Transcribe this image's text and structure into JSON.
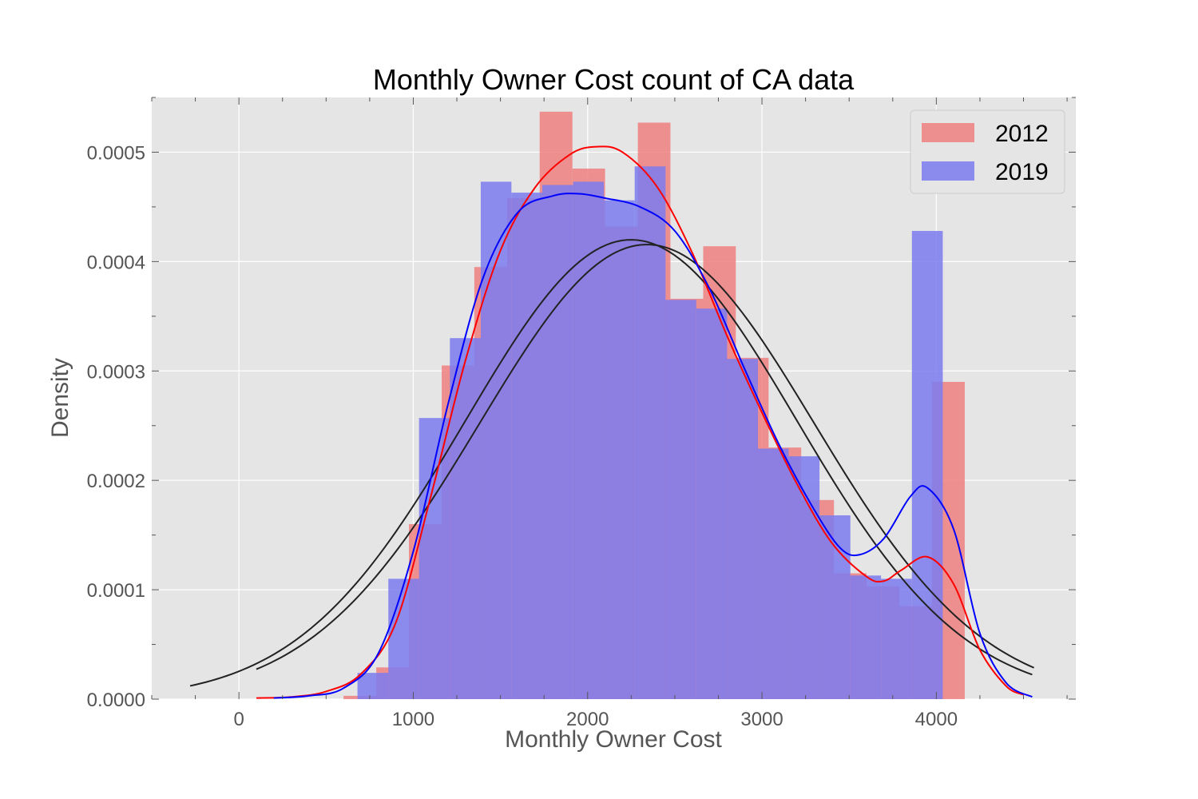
{
  "chart_data": {
    "type": "bar",
    "title": "Monthly Owner Cost count of CA  data",
    "xlabel": "Monthly Owner Cost",
    "ylabel": "Density",
    "xlim": [
      -500,
      4800
    ],
    "ylim": [
      0,
      0.00055
    ],
    "x_ticks": [
      0,
      1000,
      2000,
      3000,
      4000
    ],
    "x_tick_labels": [
      "0",
      "1000",
      "2000",
      "3000",
      "4000"
    ],
    "y_ticks": [
      0,
      0.0001,
      0.0002,
      0.0003,
      0.0004,
      0.0005
    ],
    "y_tick_labels": [
      "0.0000",
      "0.0001",
      "0.0002",
      "0.0003",
      "0.0004",
      "0.0005"
    ],
    "grid": true,
    "legend_position": "top-right",
    "series": [
      {
        "name": "2012",
        "kind": "histogram",
        "color": "#f08080",
        "bins": [
          {
            "x0": 600,
            "x1": 788,
            "value": 3e-06
          },
          {
            "x0": 788,
            "x1": 975,
            "value": 2.9e-05
          },
          {
            "x0": 975,
            "x1": 1163,
            "value": 0.00016
          },
          {
            "x0": 1163,
            "x1": 1350,
            "value": 0.000305
          },
          {
            "x0": 1350,
            "x1": 1538,
            "value": 0.000395
          },
          {
            "x0": 1538,
            "x1": 1725,
            "value": 0.000458
          },
          {
            "x0": 1725,
            "x1": 1913,
            "value": 0.000537
          },
          {
            "x0": 1913,
            "x1": 2100,
            "value": 0.000485
          },
          {
            "x0": 2100,
            "x1": 2288,
            "value": 0.000432
          },
          {
            "x0": 2288,
            "x1": 2475,
            "value": 0.000527
          },
          {
            "x0": 2475,
            "x1": 2663,
            "value": 0.000366
          },
          {
            "x0": 2663,
            "x1": 2850,
            "value": 0.000414
          },
          {
            "x0": 2850,
            "x1": 3038,
            "value": 0.000312
          },
          {
            "x0": 3038,
            "x1": 3225,
            "value": 0.00023
          },
          {
            "x0": 3225,
            "x1": 3413,
            "value": 0.000182
          },
          {
            "x0": 3413,
            "x1": 3600,
            "value": 0.000115
          },
          {
            "x0": 3600,
            "x1": 3788,
            "value": 0.000103
          },
          {
            "x0": 3788,
            "x1": 3975,
            "value": 8.5e-05
          },
          {
            "x0": 3975,
            "x1": 4163,
            "value": 0.00029
          }
        ],
        "kde": [
          {
            "x": 100,
            "y": 1e-06
          },
          {
            "x": 300,
            "y": 2e-06
          },
          {
            "x": 500,
            "y": 7e-06
          },
          {
            "x": 700,
            "y": 2.3e-05
          },
          {
            "x": 900,
            "y": 7e-05
          },
          {
            "x": 1100,
            "y": 0.000185
          },
          {
            "x": 1300,
            "y": 0.00031
          },
          {
            "x": 1500,
            "y": 0.00041
          },
          {
            "x": 1700,
            "y": 0.000468
          },
          {
            "x": 1900,
            "y": 0.000498
          },
          {
            "x": 2050,
            "y": 0.000505
          },
          {
            "x": 2200,
            "y": 0.0005
          },
          {
            "x": 2400,
            "y": 0.000468
          },
          {
            "x": 2600,
            "y": 0.000408
          },
          {
            "x": 2800,
            "y": 0.000332
          },
          {
            "x": 3000,
            "y": 0.000262
          },
          {
            "x": 3200,
            "y": 0.000197
          },
          {
            "x": 3400,
            "y": 0.000143
          },
          {
            "x": 3600,
            "y": 0.000112
          },
          {
            "x": 3700,
            "y": 0.000108
          },
          {
            "x": 3800,
            "y": 0.000118
          },
          {
            "x": 3950,
            "y": 0.00013
          },
          {
            "x": 4100,
            "y": 0.000105
          },
          {
            "x": 4250,
            "y": 4.5e-05
          },
          {
            "x": 4400,
            "y": 1.2e-05
          },
          {
            "x": 4500,
            "y": 4e-06
          }
        ],
        "normal_fit": {
          "mean": 2250,
          "std": 950,
          "x_range": [
            -280,
            4550
          ]
        }
      },
      {
        "name": "2019",
        "kind": "histogram",
        "color": "#7b7bf0",
        "bins": [
          {
            "x0": 680,
            "x1": 857,
            "value": 2.4e-05
          },
          {
            "x0": 857,
            "x1": 1033,
            "value": 0.00011
          },
          {
            "x0": 1033,
            "x1": 1210,
            "value": 0.000257
          },
          {
            "x0": 1210,
            "x1": 1387,
            "value": 0.00033
          },
          {
            "x0": 1387,
            "x1": 1563,
            "value": 0.000473
          },
          {
            "x0": 1563,
            "x1": 1740,
            "value": 0.000463
          },
          {
            "x0": 1740,
            "x1": 1917,
            "value": 0.00047
          },
          {
            "x0": 1917,
            "x1": 2093,
            "value": 0.000473
          },
          {
            "x0": 2093,
            "x1": 2270,
            "value": 0.000456
          },
          {
            "x0": 2270,
            "x1": 2447,
            "value": 0.000487
          },
          {
            "x0": 2447,
            "x1": 2623,
            "value": 0.000365
          },
          {
            "x0": 2623,
            "x1": 2800,
            "value": 0.000357
          },
          {
            "x0": 2800,
            "x1": 2977,
            "value": 0.000311
          },
          {
            "x0": 2977,
            "x1": 3153,
            "value": 0.000229
          },
          {
            "x0": 3153,
            "x1": 3330,
            "value": 0.000222
          },
          {
            "x0": 3330,
            "x1": 3507,
            "value": 0.000168
          },
          {
            "x0": 3507,
            "x1": 3683,
            "value": 0.000113
          },
          {
            "x0": 3683,
            "x1": 3860,
            "value": 0.00011
          },
          {
            "x0": 3860,
            "x1": 4037,
            "value": 0.000428
          }
        ],
        "kde": [
          {
            "x": 200,
            "y": 1e-06
          },
          {
            "x": 400,
            "y": 3e-06
          },
          {
            "x": 600,
            "y": 1e-05
          },
          {
            "x": 800,
            "y": 4.2e-05
          },
          {
            "x": 1000,
            "y": 0.000135
          },
          {
            "x": 1200,
            "y": 0.00027
          },
          {
            "x": 1400,
            "y": 0.000385
          },
          {
            "x": 1600,
            "y": 0.000445
          },
          {
            "x": 1800,
            "y": 0.00046
          },
          {
            "x": 1950,
            "y": 0.000462
          },
          {
            "x": 2100,
            "y": 0.000458
          },
          {
            "x": 2300,
            "y": 0.00045
          },
          {
            "x": 2500,
            "y": 0.000428
          },
          {
            "x": 2700,
            "y": 0.000375
          },
          {
            "x": 2900,
            "y": 0.000302
          },
          {
            "x": 3100,
            "y": 0.000232
          },
          {
            "x": 3300,
            "y": 0.000173
          },
          {
            "x": 3450,
            "y": 0.000138
          },
          {
            "x": 3560,
            "y": 0.000132
          },
          {
            "x": 3700,
            "y": 0.000147
          },
          {
            "x": 3850,
            "y": 0.000185
          },
          {
            "x": 3950,
            "y": 0.000193
          },
          {
            "x": 4100,
            "y": 0.000155
          },
          {
            "x": 4250,
            "y": 6e-05
          },
          {
            "x": 4400,
            "y": 1.5e-05
          },
          {
            "x": 4550,
            "y": 2e-06
          }
        ],
        "normal_fit": {
          "mean": 2340,
          "std": 960,
          "x_range": [
            100,
            4560
          ]
        }
      }
    ],
    "kde_colors": {
      "2012": "#ff0000",
      "2019": "#0000ff",
      "normal_fit": "#222222"
    }
  }
}
